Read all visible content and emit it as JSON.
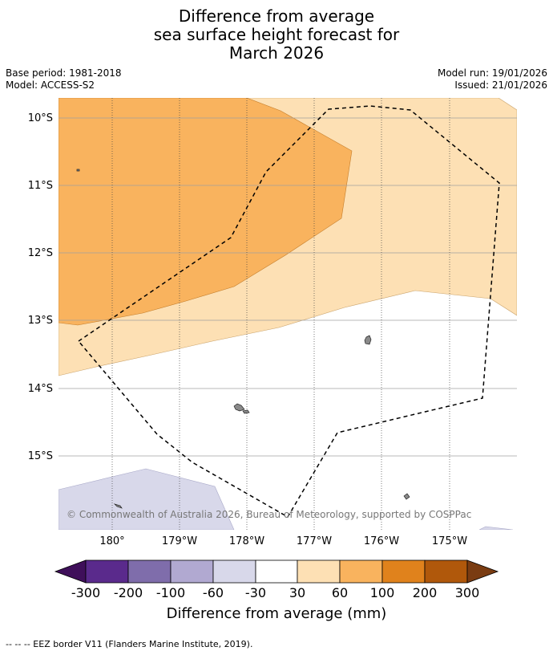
{
  "title": {
    "line1": "Difference from average",
    "line2": "sea surface height forecast for",
    "line3": "March 2026"
  },
  "meta": {
    "base_period": "Base period: 1981-2018",
    "model": "Model: ACCESS-S2",
    "model_run": "Model run: 19/01/2026",
    "issued": "Issued: 21/01/2026"
  },
  "map": {
    "lat_labels": [
      "10°S",
      "11°S",
      "12°S",
      "13°S",
      "14°S",
      "15°S"
    ],
    "lon_labels": [
      "180°",
      "179°W",
      "178°W",
      "177°W",
      "176°W",
      "175°W"
    ],
    "copyright": "© Commonwealth of Australia 2026, Bureau of Meteorology, supported by COSPPac"
  },
  "legend": {
    "colors": [
      "#3f0f5a",
      "#5a2a8c",
      "#7f6dab",
      "#b1a9d1",
      "#d8d8ea",
      "#ffffff",
      "#fde0b4",
      "#f9b35e",
      "#e0821c",
      "#b0580b",
      "#7a3c12"
    ],
    "tick_labels": [
      "-300",
      "-200",
      "-100",
      "-60",
      "-30",
      "30",
      "60",
      "100",
      "200",
      "300"
    ],
    "label": "Difference from average (mm)"
  },
  "footer": {
    "eez_note": "--  --  -- EEZ border V11 (Flanders Marine Institute, 2019)."
  }
}
